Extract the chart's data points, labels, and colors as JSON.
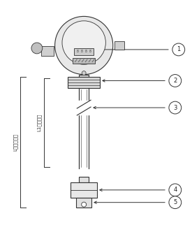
{
  "bg_color": "#ffffff",
  "line_color": "#333333",
  "dim_label_left": "L导杆总长度",
  "dim_label_mid": "L1测量范围",
  "figsize": [
    2.75,
    3.22
  ],
  "dpi": 100
}
